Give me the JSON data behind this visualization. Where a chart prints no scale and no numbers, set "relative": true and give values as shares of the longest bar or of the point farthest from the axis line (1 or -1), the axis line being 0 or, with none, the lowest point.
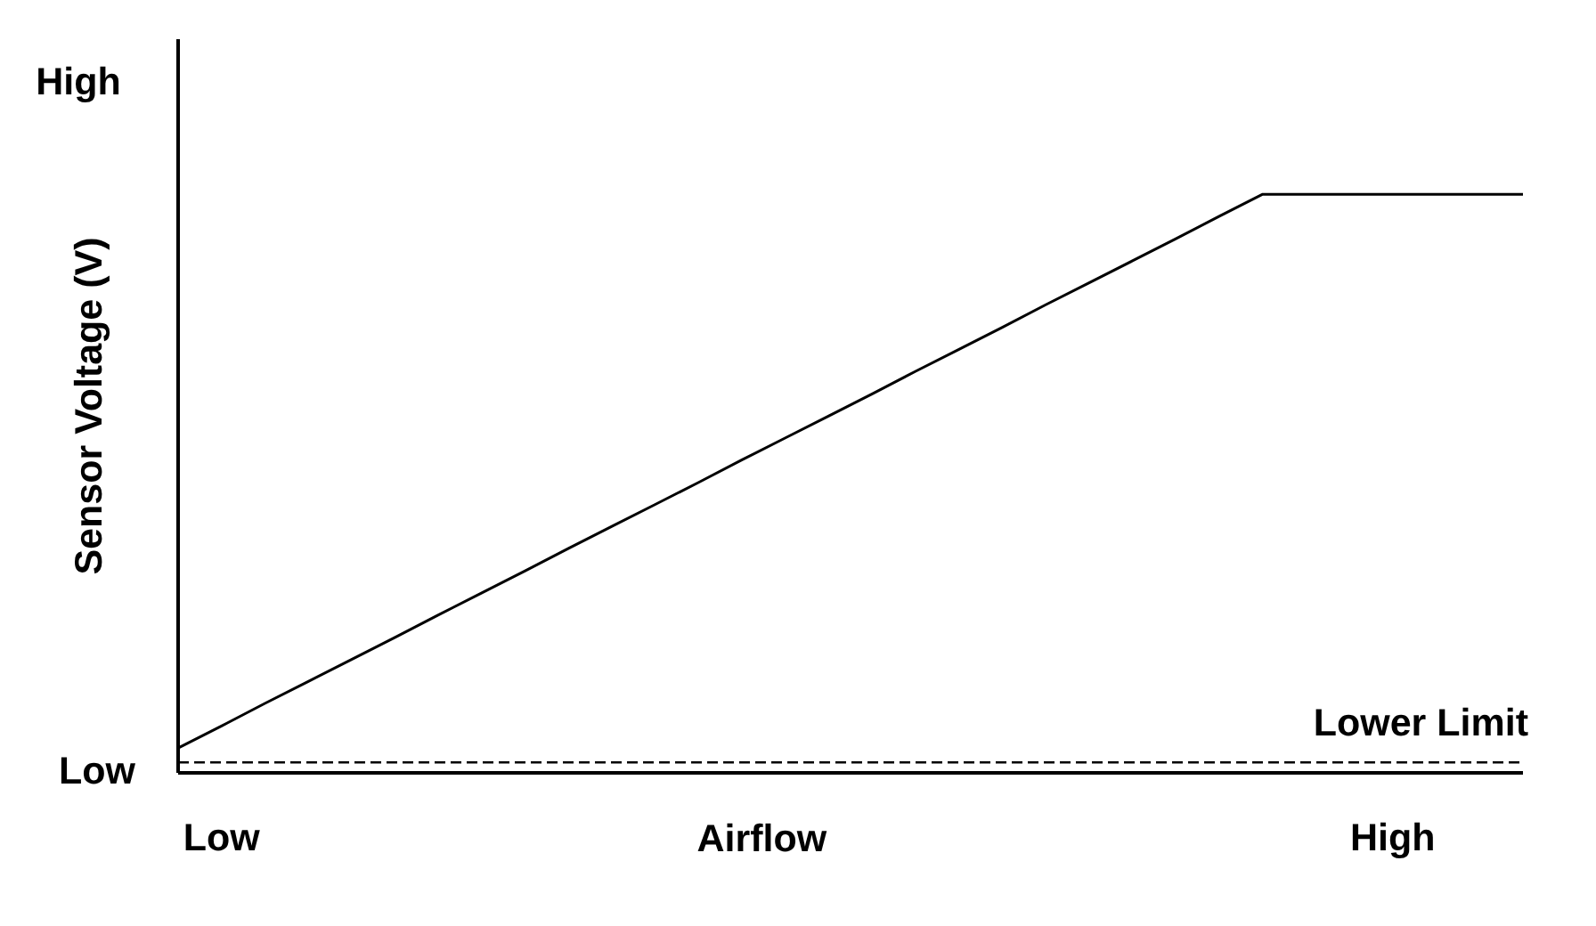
{
  "chart_data": {
    "type": "line",
    "relative": true,
    "xlabel": "Airflow",
    "ylabel": "Sensor Voltage (V)",
    "categories": [
      null,
      "Low",
      null,
      null,
      null,
      null,
      null,
      null,
      null,
      null,
      null,
      null,
      null,
      null,
      null,
      null,
      null,
      null,
      null,
      null,
      null,
      null,
      null,
      null,
      null,
      null,
      null,
      null,
      "High",
      null,
      null,
      null
    ],
    "series": [
      {
        "values": [
          0.043,
          0.081,
          0.12,
          0.158,
          0.196,
          0.234,
          0.273,
          0.311,
          0.349,
          0.388,
          0.426,
          0.464,
          0.502,
          0.541,
          0.579,
          0.617,
          0.655,
          0.694,
          0.732,
          0.77,
          0.809,
          0.847,
          0.885,
          0.923,
          0.962,
          1,
          1,
          1,
          1,
          1,
          1,
          1
        ],
        "color": "#000000"
      }
    ],
    "ref_lines": [
      {
        "axis": "y",
        "value": 0.018,
        "label": "Lower Limit",
        "line_style": "dashed",
        "color": "#000000"
      }
    ],
    "annotations": [
      "High",
      "Low"
    ],
    "marker": "none"
  }
}
